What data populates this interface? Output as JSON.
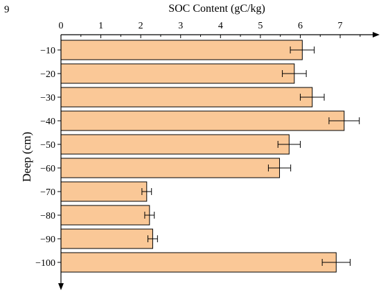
{
  "panel_label": "9",
  "chart_data": {
    "type": "bar",
    "orientation": "horizontal",
    "title": "",
    "xlabel": "SOC Content (gC/kg)",
    "ylabel": "Deep (cm)",
    "categories": [
      "−10",
      "−20",
      "−30",
      "−40",
      "−50",
      "−60",
      "−70",
      "−80",
      "−90",
      "−100"
    ],
    "values": [
      6.05,
      5.85,
      6.3,
      7.1,
      5.72,
      5.48,
      2.15,
      2.22,
      2.3,
      6.9
    ],
    "errors": [
      0.3,
      0.3,
      0.3,
      0.38,
      0.28,
      0.28,
      0.12,
      0.12,
      0.12,
      0.35
    ],
    "xticks": [
      "0",
      "1",
      "2",
      "3",
      "4",
      "5",
      "6",
      "7"
    ],
    "xlim": [
      0,
      7.85
    ],
    "x_axis_position": "top",
    "grid": false,
    "legend": "none",
    "colors": {
      "bar_fill": "#fac897",
      "bar_stroke": "#000000",
      "error_bar": "#000000",
      "axis": "#000000"
    }
  }
}
